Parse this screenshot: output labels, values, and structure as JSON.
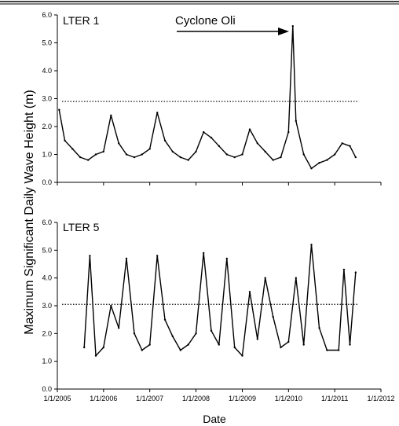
{
  "chart_data": [
    {
      "type": "line",
      "panel_label": "LTER 1",
      "annotation": "Cyclone Oli",
      "ylabel": "Maximum Significant Daily Wave Height (m)",
      "xlabel": "",
      "ylim": [
        0.0,
        6.0
      ],
      "yticks": [
        "0.0",
        "1.0",
        "2.0",
        "3.0",
        "4.0",
        "5.0",
        "6.0"
      ],
      "xlim": [
        "2005-01-01",
        "2012-01-01"
      ],
      "xticks": [],
      "reference_line": 2.9,
      "series": [
        {
          "x": [
            "2005-01-15",
            "2005-03-01",
            "2005-05-01",
            "2005-07-01",
            "2005-09-01",
            "2005-11-01",
            "2006-01-01",
            "2006-03-01",
            "2006-05-01",
            "2006-07-01",
            "2006-09-01",
            "2006-11-01",
            "2007-01-01",
            "2007-03-01",
            "2007-05-01",
            "2007-07-01",
            "2007-09-01",
            "2007-11-01",
            "2008-01-01",
            "2008-03-01",
            "2008-05-01",
            "2008-07-01",
            "2008-09-01",
            "2008-11-01",
            "2009-01-01",
            "2009-03-01",
            "2009-05-01",
            "2009-07-01",
            "2009-09-01",
            "2009-11-01",
            "2010-01-01",
            "2010-02-04",
            "2010-03-01",
            "2010-05-01",
            "2010-07-01",
            "2010-09-01",
            "2010-11-01",
            "2011-01-01",
            "2011-03-01",
            "2011-05-01",
            "2011-06-15"
          ],
          "y": [
            2.6,
            1.5,
            1.2,
            0.9,
            0.8,
            1.0,
            1.1,
            2.4,
            1.4,
            1.0,
            0.9,
            1.0,
            1.2,
            2.5,
            1.5,
            1.1,
            0.9,
            0.8,
            1.1,
            1.8,
            1.6,
            1.3,
            1.0,
            0.9,
            1.0,
            1.9,
            1.4,
            1.1,
            0.8,
            0.9,
            1.8,
            5.6,
            2.2,
            1.0,
            0.5,
            0.7,
            0.8,
            1.0,
            1.4,
            1.3,
            0.9
          ]
        }
      ]
    },
    {
      "type": "line",
      "panel_label": "LTER 5",
      "xlabel": "Date",
      "ylabel": "",
      "ylim": [
        0.0,
        6.0
      ],
      "yticks": [
        "0.0",
        "1.0",
        "2.0",
        "3.0",
        "4.0",
        "5.0",
        "6.0"
      ],
      "xlim": [
        "2005-01-01",
        "2012-01-01"
      ],
      "xticks": [
        "1/1/2005",
        "1/1/2006",
        "1/1/2007",
        "1/1/2008",
        "1/1/2009",
        "1/1/2010",
        "1/1/2011",
        "1/1/2012"
      ],
      "reference_line": 3.05,
      "series": [
        {
          "x": [
            "2005-08-01",
            "2005-09-15",
            "2005-11-01",
            "2006-01-01",
            "2006-03-01",
            "2006-05-01",
            "2006-07-01",
            "2006-09-01",
            "2006-11-01",
            "2007-01-01",
            "2007-03-01",
            "2007-05-01",
            "2007-07-01",
            "2007-09-01",
            "2007-11-01",
            "2008-01-01",
            "2008-03-01",
            "2008-05-01",
            "2008-07-01",
            "2008-09-01",
            "2008-11-01",
            "2009-01-01",
            "2009-03-01",
            "2009-05-01",
            "2009-07-01",
            "2009-09-01",
            "2009-11-01",
            "2010-01-01",
            "2010-03-01",
            "2010-05-01",
            "2010-07-01",
            "2010-09-01",
            "2010-11-01",
            "2011-02-01",
            "2011-03-15",
            "2011-05-01",
            "2011-06-15"
          ],
          "y": [
            1.5,
            4.8,
            1.2,
            1.5,
            3.0,
            2.2,
            4.7,
            2.0,
            1.4,
            1.6,
            4.8,
            2.5,
            1.9,
            1.4,
            1.6,
            2.0,
            4.9,
            2.1,
            1.6,
            4.7,
            1.5,
            1.2,
            3.5,
            1.8,
            4.0,
            2.6,
            1.5,
            1.7,
            4.0,
            1.6,
            5.2,
            2.2,
            1.4,
            1.4,
            4.3,
            1.6,
            4.2
          ]
        }
      ]
    }
  ]
}
